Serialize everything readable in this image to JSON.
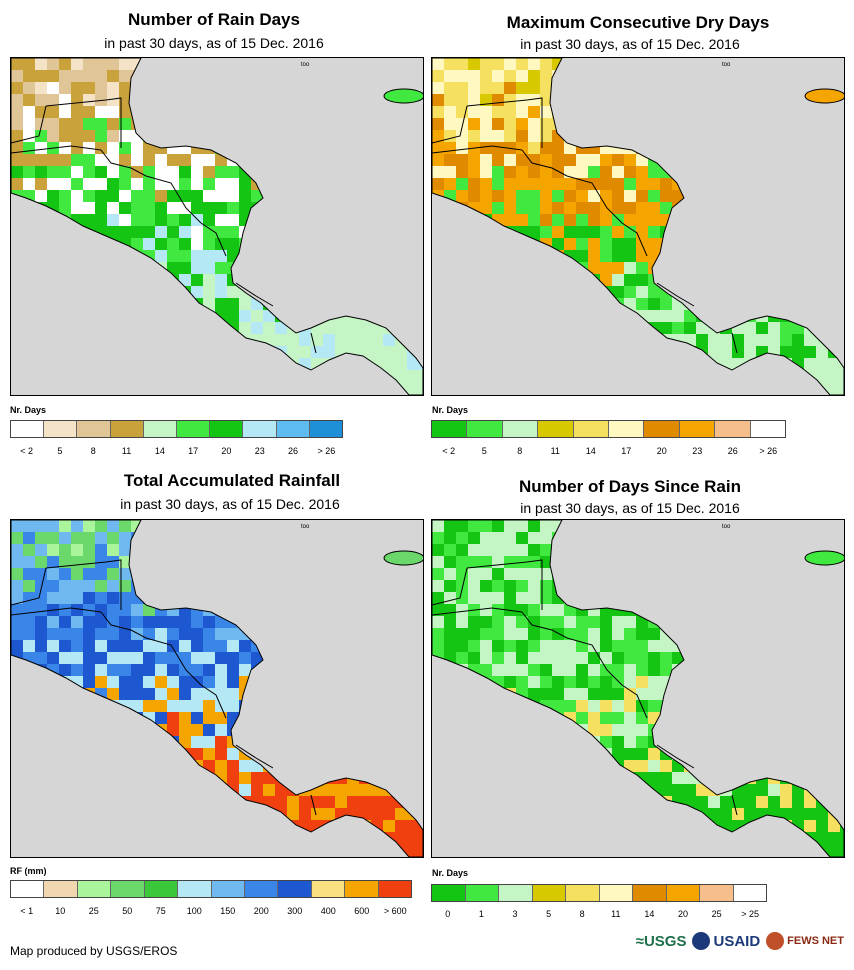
{
  "panels": [
    {
      "title": "Number of Rain Days",
      "subtitle": "in past 30 days, as of 15 Dec. 2016",
      "legend_title": "Nr. Days",
      "legend_colors": [
        "#ffffff",
        "#f5e3c8",
        "#e0c597",
        "#c9a23c",
        "#c5f5c5",
        "#40e840",
        "#14c514",
        "#b5e8f5",
        "#5fbcf0",
        "#1e90d8"
      ],
      "legend_labels": [
        "< 2",
        "5",
        "8",
        "11",
        "14",
        "17",
        "20",
        "23",
        "26",
        "> 26"
      ],
      "land_palette": [
        "#f5e3c8",
        "#e0c597",
        "#c9a23c",
        "#ffffff",
        "#40e840",
        "#14c514",
        "#b5e8f5",
        "#c5f5c5"
      ],
      "mini_label": "too"
    },
    {
      "title": "Maximum Consecutive Dry Days",
      "subtitle": "in past 30 days, as of 15 Dec. 2016",
      "legend_title": "Nr. Days",
      "legend_colors": [
        "#14c514",
        "#40e840",
        "#c5f5c5",
        "#d8c800",
        "#f5e060",
        "#fff8c0",
        "#e08a00",
        "#f5a500",
        "#f5be8a",
        "#ffffff"
      ],
      "legend_labels": [
        "< 2",
        "5",
        "8",
        "11",
        "14",
        "17",
        "20",
        "23",
        "26",
        "> 26"
      ],
      "land_palette": [
        "#d8c800",
        "#f5e060",
        "#fff8c0",
        "#e08a00",
        "#f5a500",
        "#40e840",
        "#14c514",
        "#c5f5c5"
      ],
      "mini_label": "too"
    },
    {
      "title": "Total Accumulated Rainfall",
      "subtitle": "in past 30 days, as of 15 Dec. 2016",
      "legend_title": "RF (mm)",
      "legend_colors": [
        "#ffffff",
        "#f0d7b0",
        "#aaf59b",
        "#6ad86a",
        "#3ac83a",
        "#b5e8f5",
        "#6fb8f0",
        "#3a86e8",
        "#1e58d0",
        "#fae080",
        "#f5a500",
        "#f04010"
      ],
      "legend_labels": [
        "< 1",
        "10",
        "25",
        "50",
        "75",
        "100",
        "150",
        "200",
        "300",
        "400",
        "600",
        "> 600"
      ],
      "land_palette": [
        "#aaf59b",
        "#6ad86a",
        "#6fb8f0",
        "#3a86e8",
        "#1e58d0",
        "#b5e8f5",
        "#f5a500",
        "#f04010"
      ],
      "mini_label": "too"
    },
    {
      "title": "Number of Days Since Rain",
      "subtitle": "in past 30 days, as of 15 Dec. 2016",
      "legend_title": "Nr. Days",
      "legend_colors": [
        "#14c514",
        "#40e840",
        "#c5f5c5",
        "#d8c800",
        "#f5e060",
        "#fff8c0",
        "#e08a00",
        "#f5a500",
        "#f5be8a",
        "#ffffff"
      ],
      "legend_labels": [
        "0",
        "1",
        "3",
        "5",
        "8",
        "11",
        "14",
        "20",
        "25",
        "> 25"
      ],
      "land_palette": [
        "#14c514",
        "#40e840",
        "#c5f5c5",
        "#14c514",
        "#40e840",
        "#c5f5c5",
        "#f5e060",
        "#14c514"
      ],
      "mini_label": "too"
    }
  ],
  "footer": {
    "credit": "Map produced by USGS/EROS",
    "logo_usgs": "≈USGS",
    "logo_usaid": "USAID",
    "logo_fews": "FEWS NET"
  }
}
